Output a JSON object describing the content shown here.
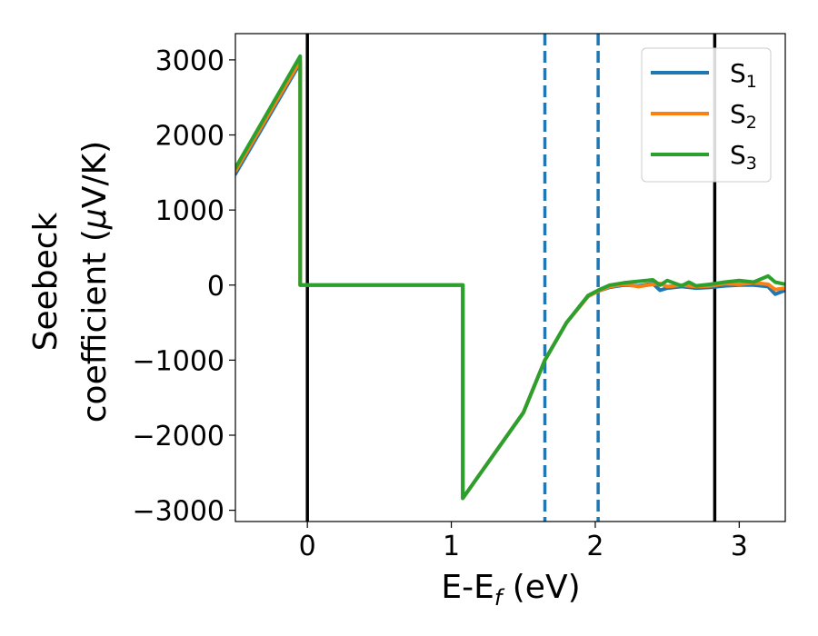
{
  "chart_data": {
    "type": "line",
    "xlabel": "E-E",
    "xlabel_sub": "f",
    "xlabel_unit": " (eV)",
    "ylabel_line1": "Seebeck",
    "ylabel_line2": "coefficient  (",
    "ylabel_mu": "μ",
    "ylabel_unit": "V/K)",
    "xlim": [
      -0.5,
      3.32
    ],
    "ylim": [
      -3150,
      3350
    ],
    "xticks": [
      {
        "value": 0,
        "label": "0"
      },
      {
        "value": 1,
        "label": "1"
      },
      {
        "value": 2,
        "label": "2"
      },
      {
        "value": 3,
        "label": "3"
      }
    ],
    "yticks": [
      {
        "value": 3000,
        "label": "3000"
      },
      {
        "value": 2000,
        "label": "2000"
      },
      {
        "value": 1000,
        "label": "1000"
      },
      {
        "value": 0,
        "label": "0"
      },
      {
        "value": -1000,
        "label": "−1000"
      },
      {
        "value": -2000,
        "label": "−2000"
      },
      {
        "value": -3000,
        "label": "−3000"
      }
    ],
    "vertical_lines": [
      {
        "x": 0,
        "color": "#000000",
        "style": "solid"
      },
      {
        "x": 2.83,
        "color": "#000000",
        "style": "solid"
      },
      {
        "x": 1.65,
        "color": "#1f77b4",
        "style": "dashed"
      },
      {
        "x": 2.02,
        "color": "#1f77b4",
        "style": "dashed"
      }
    ],
    "legend_position": "top-right",
    "series": [
      {
        "name": "S",
        "sub": "1",
        "color": "#1f77b4",
        "points": [
          [
            -0.5,
            1480
          ],
          [
            -0.05,
            2960
          ],
          [
            -0.05,
            0
          ],
          [
            1.08,
            0
          ],
          [
            1.08,
            -2840
          ],
          [
            1.5,
            -1700
          ],
          [
            1.65,
            -1000
          ],
          [
            1.8,
            -500
          ],
          [
            1.95,
            -150
          ],
          [
            2.02,
            -80
          ],
          [
            2.1,
            -30
          ],
          [
            2.2,
            0
          ],
          [
            2.3,
            -10
          ],
          [
            2.4,
            20
          ],
          [
            2.45,
            -70
          ],
          [
            2.5,
            -40
          ],
          [
            2.6,
            -20
          ],
          [
            2.7,
            -40
          ],
          [
            2.8,
            -30
          ],
          [
            2.9,
            -10
          ],
          [
            3.0,
            0
          ],
          [
            3.1,
            0
          ],
          [
            3.2,
            -20
          ],
          [
            3.25,
            -120
          ],
          [
            3.32,
            -70
          ]
        ]
      },
      {
        "name": "S",
        "sub": "2",
        "color": "#ff7f0e",
        "points": [
          [
            -0.5,
            1520
          ],
          [
            -0.05,
            2990
          ],
          [
            -0.05,
            0
          ],
          [
            1.08,
            0
          ],
          [
            1.08,
            -2840
          ],
          [
            1.5,
            -1700
          ],
          [
            1.65,
            -1000
          ],
          [
            1.8,
            -500
          ],
          [
            1.95,
            -150
          ],
          [
            2.02,
            -80
          ],
          [
            2.1,
            -20
          ],
          [
            2.2,
            10
          ],
          [
            2.3,
            -20
          ],
          [
            2.4,
            10
          ],
          [
            2.45,
            20
          ],
          [
            2.5,
            -20
          ],
          [
            2.6,
            0
          ],
          [
            2.7,
            -20
          ],
          [
            2.8,
            -10
          ],
          [
            2.9,
            20
          ],
          [
            3.0,
            10
          ],
          [
            3.1,
            30
          ],
          [
            3.2,
            10
          ],
          [
            3.25,
            -60
          ],
          [
            3.32,
            -40
          ]
        ]
      },
      {
        "name": "S",
        "sub": "3",
        "color": "#2ca02c",
        "points": [
          [
            -0.5,
            1560
          ],
          [
            -0.05,
            3050
          ],
          [
            -0.05,
            0
          ],
          [
            1.08,
            0
          ],
          [
            1.08,
            -2840
          ],
          [
            1.5,
            -1700
          ],
          [
            1.65,
            -1000
          ],
          [
            1.8,
            -500
          ],
          [
            1.95,
            -140
          ],
          [
            2.02,
            -70
          ],
          [
            2.1,
            0
          ],
          [
            2.2,
            30
          ],
          [
            2.3,
            50
          ],
          [
            2.4,
            70
          ],
          [
            2.45,
            0
          ],
          [
            2.5,
            60
          ],
          [
            2.6,
            -10
          ],
          [
            2.65,
            40
          ],
          [
            2.7,
            -10
          ],
          [
            2.8,
            10
          ],
          [
            2.9,
            40
          ],
          [
            3.0,
            60
          ],
          [
            3.1,
            40
          ],
          [
            3.2,
            120
          ],
          [
            3.25,
            40
          ],
          [
            3.32,
            10
          ]
        ]
      }
    ]
  }
}
